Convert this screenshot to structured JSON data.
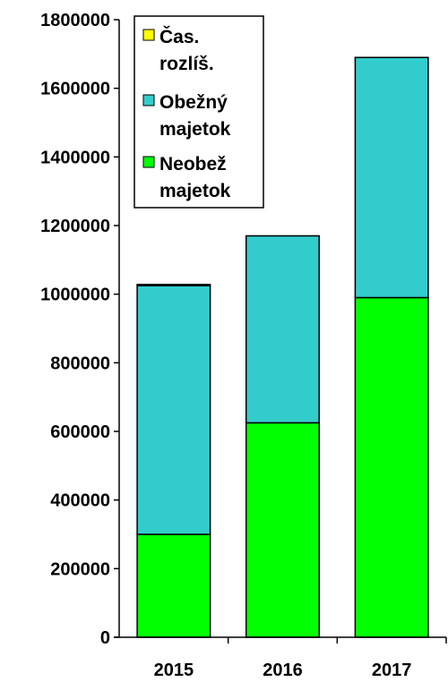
{
  "chart_data": {
    "type": "bar",
    "stacked": true,
    "categories": [
      "2015",
      "2016",
      "2017"
    ],
    "series": [
      {
        "name": "Neobež majetok",
        "values": [
          300000,
          625000,
          990000
        ],
        "color": "#00ff00"
      },
      {
        "name": "Obežný majetok",
        "values": [
          725000,
          545000,
          700000
        ],
        "color": "#33cccc"
      },
      {
        "name": "Čas. rozlíš.",
        "values": [
          3000,
          0,
          0
        ],
        "color": "#ffff00"
      }
    ],
    "ylim": [
      0,
      1800000
    ],
    "yticks": [
      "0",
      "200000",
      "400000",
      "600000",
      "800000",
      "1000000",
      "1200000",
      "1400000",
      "1600000",
      "1800000"
    ],
    "legend": {
      "position": "top-left",
      "entries": [
        {
          "line1": "Čas.",
          "line2": "rozlíš."
        },
        {
          "line1": "Obežný",
          "line2": "majetok"
        },
        {
          "line1": "Neobež",
          "line2": "majetok"
        }
      ]
    },
    "grid": false
  }
}
